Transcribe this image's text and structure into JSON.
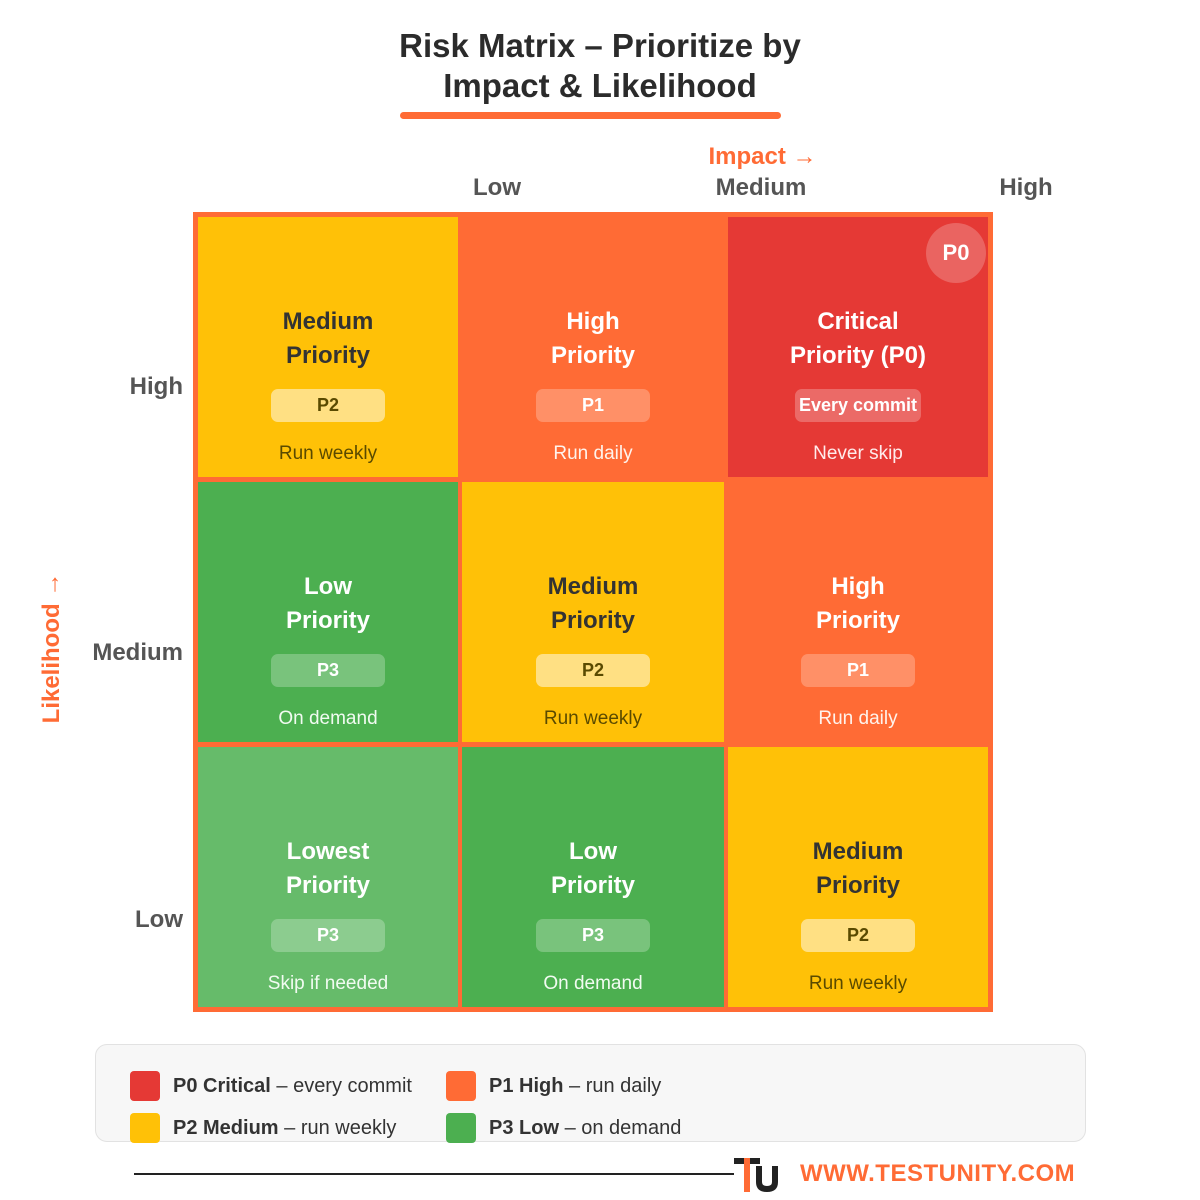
{
  "title": {
    "line1": "Risk Matrix – Prioritize by",
    "line2": "Impact & Likelihood"
  },
  "axes": {
    "impact_title": "Impact →",
    "likelihood_title": "Likelihood →",
    "impact_levels": [
      "Low",
      "Medium",
      "High"
    ],
    "likelihood_levels": [
      "High",
      "Medium",
      "Low"
    ]
  },
  "matrix": {
    "corner_badge": "P0",
    "cells": [
      {
        "row": "High",
        "col": "Low",
        "title1": "Medium",
        "title2": "Priority",
        "badge": "P2",
        "note": "Run weekly",
        "color": "#ffc107"
      },
      {
        "row": "High",
        "col": "Medium",
        "title1": "High",
        "title2": "Priority",
        "badge": "P1",
        "note": "Run daily",
        "color": "#ff6b35"
      },
      {
        "row": "High",
        "col": "High",
        "title1": "Critical",
        "title2": "Priority (P0)",
        "badge": "Every commit",
        "note": "Never skip",
        "color": "#e53935"
      },
      {
        "row": "Medium",
        "col": "Low",
        "title1": "Low",
        "title2": "Priority",
        "badge": "P3",
        "note": "On demand",
        "color": "#4caf50"
      },
      {
        "row": "Medium",
        "col": "Medium",
        "title1": "Medium",
        "title2": "Priority",
        "badge": "P2",
        "note": "Run weekly",
        "color": "#ffc107"
      },
      {
        "row": "Medium",
        "col": "High",
        "title1": "High",
        "title2": "Priority",
        "badge": "P1",
        "note": "Run daily",
        "color": "#ff6b35"
      },
      {
        "row": "Low",
        "col": "Low",
        "title1": "Lowest",
        "title2": "Priority",
        "badge": "P3",
        "note": "Skip if needed",
        "color": "#66bb6a"
      },
      {
        "row": "Low",
        "col": "Medium",
        "title1": "Low",
        "title2": "Priority",
        "badge": "P3",
        "note": "On demand",
        "color": "#4caf50"
      },
      {
        "row": "Low",
        "col": "High",
        "title1": "Medium",
        "title2": "Priority",
        "badge": "P2",
        "note": "Run weekly",
        "color": "#ffc107"
      }
    ]
  },
  "legend": [
    {
      "code": "P0 Critical",
      "desc": " – every commit",
      "color": "#e53935"
    },
    {
      "code": "P1 High",
      "desc": " – run daily",
      "color": "#ff6b35"
    },
    {
      "code": "P2 Medium",
      "desc": " – run weekly",
      "color": "#ffc107"
    },
    {
      "code": "P3 Low",
      "desc": " – on demand",
      "color": "#4caf50"
    }
  ],
  "footer": {
    "website": "WWW.TESTUNITY.COM",
    "accent_color": "#ff6b35"
  }
}
